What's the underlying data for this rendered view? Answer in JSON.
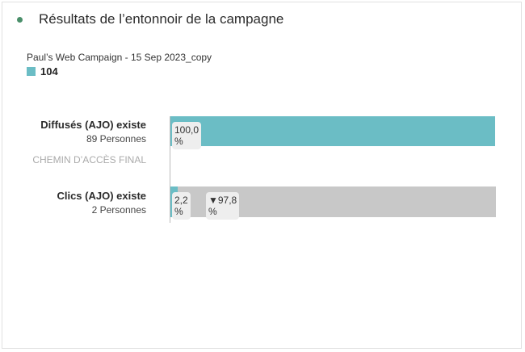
{
  "header": {
    "title": "Résultats de l’entonnoir de la campagne"
  },
  "legend": {
    "series_name": "Paul’s Web Campaign - 15 Sep 2023_copy",
    "value": "104",
    "color": "#6bbdc5"
  },
  "final_path_label": "CHEMIN D’ACCÈS FINAL",
  "chart_data": {
    "type": "bar",
    "title": "Résultats de l’entonnoir de la campagne",
    "steps": [
      {
        "name": "Diffusés (AJO) existe",
        "count": "89 Personnes",
        "percent": 100.0,
        "percent_label": "100,0 %"
      },
      {
        "name": "Clics (AJO) existe",
        "count": "2 Personnes",
        "percent": 2.2,
        "percent_label": "2,2 %",
        "dropoff_label": "▼97,8 %"
      }
    ],
    "colors": {
      "kept": "#6bbdc5",
      "dropoff": "#c8c8c8"
    }
  }
}
